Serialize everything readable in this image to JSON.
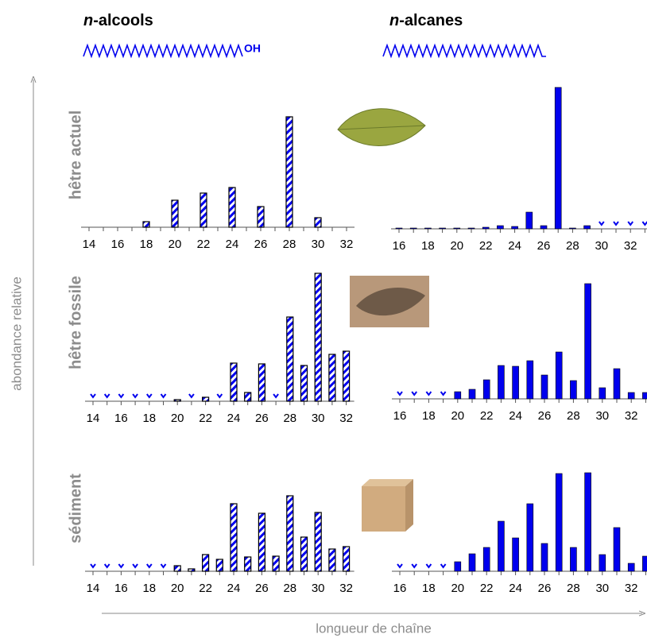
{
  "header": {
    "columns": [
      {
        "italic": "n",
        "name": "-alcools",
        "suffix": "OH"
      },
      {
        "italic": "n",
        "name": "-alcanes"
      }
    ],
    "rows": [
      "hêtre actuel",
      "hêtre fossile",
      "sédiment"
    ],
    "y_axis_label": "abondance relative",
    "x_axis_label": "longueur de chaîne"
  },
  "chart_data": [
    {
      "type": "bar",
      "pattern": "hatch",
      "color": "#0000ee",
      "nd_marker": false,
      "ylim": [
        0,
        150
      ],
      "categories": [
        14,
        null,
        16,
        null,
        18,
        null,
        20,
        null,
        22,
        null,
        24,
        null,
        26,
        null,
        28,
        null,
        30,
        null,
        32
      ],
      "values": [
        0,
        0,
        0,
        0,
        7,
        0,
        34,
        0,
        43,
        0,
        50,
        0,
        26,
        0,
        139,
        0,
        12,
        0,
        0
      ]
    },
    {
      "type": "bar",
      "pattern": "solid",
      "color": "#0000ee",
      "nd_marker": true,
      "ylim": [
        0,
        180
      ],
      "categories": [
        16,
        null,
        18,
        null,
        20,
        null,
        22,
        null,
        24,
        null,
        26,
        null,
        28,
        null,
        30,
        null,
        32,
        null
      ],
      "values": [
        1,
        1,
        1,
        1,
        1,
        1,
        2,
        4,
        3,
        21,
        4,
        178,
        1,
        4,
        null,
        null,
        null,
        null
      ]
    },
    {
      "type": "bar",
      "pattern": "hatch",
      "color": "#0000ee",
      "nd_marker": true,
      "ylim": [
        0,
        165
      ],
      "categories": [
        14,
        null,
        16,
        null,
        18,
        null,
        20,
        null,
        22,
        null,
        24,
        null,
        26,
        null,
        28,
        null,
        30,
        null,
        32
      ],
      "values": [
        null,
        null,
        null,
        null,
        null,
        null,
        2,
        null,
        5,
        null,
        48,
        11,
        47,
        null,
        106,
        45,
        161,
        59,
        63
      ]
    },
    {
      "type": "bar",
      "pattern": "solid",
      "color": "#0000ee",
      "nd_marker": true,
      "ylim": [
        0,
        150
      ],
      "categories": [
        16,
        null,
        18,
        null,
        20,
        null,
        22,
        null,
        24,
        null,
        26,
        null,
        28,
        null,
        30,
        null,
        32,
        null
      ],
      "values": [
        null,
        null,
        null,
        null,
        9,
        12,
        24,
        42,
        41,
        48,
        30,
        59,
        23,
        145,
        14,
        38,
        8,
        8
      ]
    },
    {
      "type": "bar",
      "pattern": "hatch",
      "color": "#0000ee",
      "nd_marker": true,
      "ylim": [
        0,
        100
      ],
      "categories": [
        14,
        null,
        16,
        null,
        18,
        null,
        20,
        null,
        22,
        null,
        24,
        null,
        26,
        null,
        28,
        null,
        30,
        null,
        32
      ],
      "values": [
        null,
        null,
        null,
        null,
        null,
        null,
        7,
        3,
        21,
        15,
        85,
        18,
        73,
        19,
        95,
        43,
        74,
        28,
        31
      ]
    },
    {
      "type": "bar",
      "pattern": "solid",
      "color": "#0000ee",
      "nd_marker": true,
      "ylim": [
        0,
        130
      ],
      "categories": [
        16,
        null,
        18,
        null,
        20,
        null,
        22,
        null,
        24,
        null,
        26,
        null,
        28,
        null,
        30,
        null,
        32,
        null
      ],
      "values": [
        null,
        null,
        null,
        null,
        12,
        22,
        30,
        63,
        42,
        85,
        35,
        123,
        30,
        124,
        21,
        55,
        10,
        19
      ]
    }
  ]
}
